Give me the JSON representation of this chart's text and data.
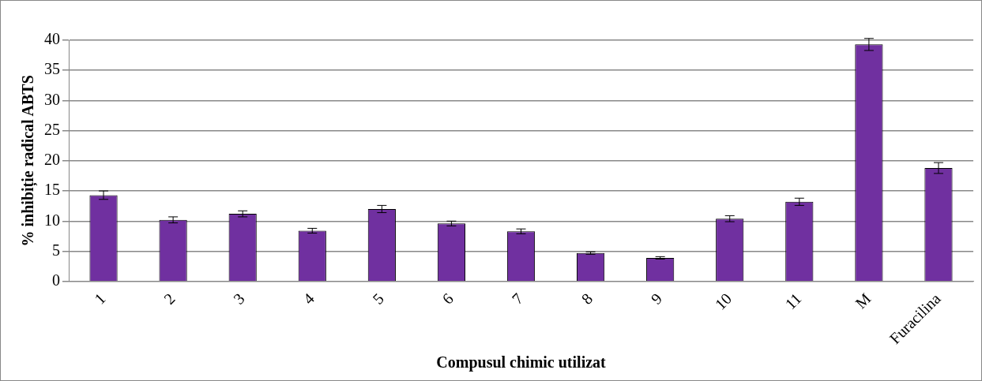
{
  "chart_data": {
    "type": "bar",
    "xlabel": "Compusul chimic utilizat",
    "ylabel": "% inhibiție radical ABTS",
    "categories": [
      "1",
      "2",
      "3",
      "4",
      "5",
      "6",
      "7",
      "8",
      "9",
      "10",
      "11",
      "M",
      "Furacilina"
    ],
    "values": [
      14.3,
      10.2,
      11.2,
      8.4,
      12.0,
      9.6,
      8.3,
      4.7,
      3.9,
      10.4,
      13.2,
      39.3,
      18.8
    ],
    "errors": [
      0.7,
      0.5,
      0.5,
      0.4,
      0.6,
      0.4,
      0.4,
      0.2,
      0.2,
      0.5,
      0.6,
      1.0,
      0.9
    ],
    "color": "#7030a0",
    "ylim": [
      0,
      40
    ],
    "yticks": [
      0,
      5,
      10,
      15,
      20,
      25,
      30,
      35,
      40
    ],
    "grid": "y",
    "legend": false
  }
}
